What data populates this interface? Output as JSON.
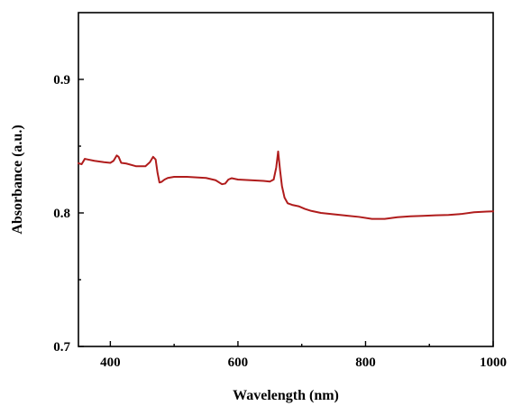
{
  "chart_data": {
    "type": "line",
    "title": "",
    "xlabel": "Wavelength (nm)",
    "ylabel": "Absorbance (a.u.)",
    "xlim": [
      350,
      1000
    ],
    "ylim": [
      0.7,
      0.95
    ],
    "x_major_ticks": [
      400,
      600,
      800,
      1000
    ],
    "x_major_tick_labels": [
      "400",
      "600",
      "800",
      "1000"
    ],
    "x_minor_ticks": [
      500,
      700,
      900
    ],
    "y_major_ticks": [
      0.7,
      0.8,
      0.9
    ],
    "y_major_tick_labels": [
      "0.7",
      "0.8",
      "0.9"
    ],
    "y_minor_ticks": [
      0.75,
      0.85
    ],
    "grid": false,
    "legend": "none",
    "line_color": "#b01c1c",
    "series": [
      {
        "x": [
          350,
          355,
          360,
          365,
          375,
          390,
          400,
          405,
          410,
          413,
          417,
          425,
          440,
          455,
          462,
          467,
          471,
          474,
          477,
          480,
          485,
          490,
          500,
          520,
          550,
          565,
          575,
          580,
          585,
          590,
          600,
          620,
          640,
          650,
          656,
          660,
          663,
          666,
          669,
          673,
          678,
          685,
          695,
          705,
          715,
          730,
          750,
          770,
          790,
          810,
          830,
          850,
          870,
          890,
          910,
          930,
          950,
          970,
          990,
          1000
        ],
        "y": [
          0.8372,
          0.8365,
          0.8405,
          0.84,
          0.839,
          0.838,
          0.8375,
          0.839,
          0.843,
          0.842,
          0.8375,
          0.837,
          0.835,
          0.835,
          0.838,
          0.842,
          0.84,
          0.83,
          0.8228,
          0.8232,
          0.825,
          0.8262,
          0.827,
          0.827,
          0.8262,
          0.8245,
          0.8215,
          0.822,
          0.825,
          0.826,
          0.825,
          0.8245,
          0.824,
          0.8235,
          0.825,
          0.834,
          0.846,
          0.832,
          0.82,
          0.8115,
          0.8072,
          0.806,
          0.805,
          0.803,
          0.8015,
          0.8,
          0.799,
          0.798,
          0.797,
          0.7955,
          0.7955,
          0.7968,
          0.7975,
          0.7978,
          0.7982,
          0.7985,
          0.7992,
          0.8005,
          0.801,
          0.8012
        ]
      }
    ]
  }
}
